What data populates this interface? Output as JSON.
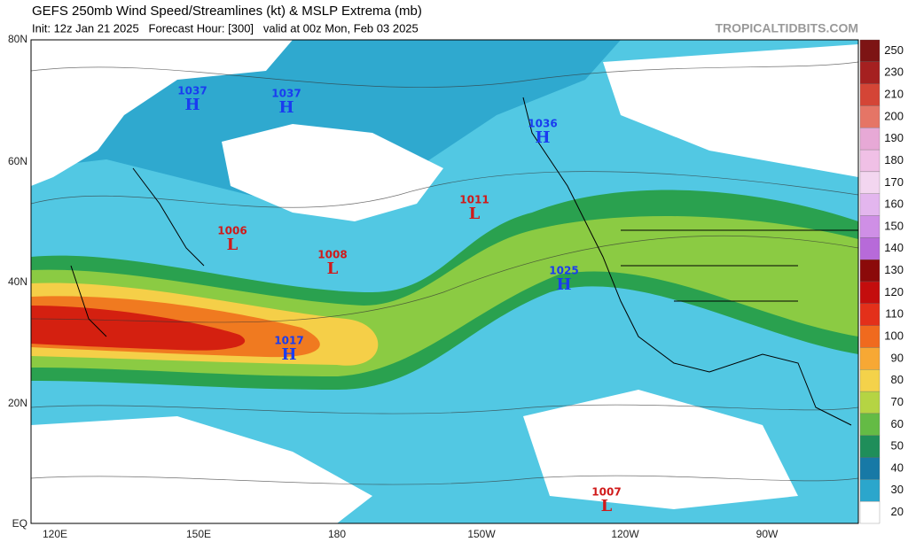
{
  "header": {
    "title": "GEFS 250mb Wind Speed/Streamlines (kt) & MSLP Extrema (mb)",
    "subtitle": "Init: 12z Jan 21 2025   Forecast Hour: [300]   valid at 00z Mon, Feb 03 2025",
    "watermark": "TROPICALTIDBITS.COM"
  },
  "map": {
    "lat_labels": [
      "80N",
      "60N",
      "40N",
      "20N",
      "EQ"
    ],
    "lon_labels": [
      "120E",
      "150E",
      "180",
      "150W",
      "120W",
      "90W"
    ],
    "extrema": [
      {
        "type": "H",
        "pressure": 1037
      },
      {
        "type": "H",
        "pressure": 1037
      },
      {
        "type": "H",
        "pressure": 1036
      },
      {
        "type": "L",
        "pressure": 1011
      },
      {
        "type": "L",
        "pressure": 1006
      },
      {
        "type": "L",
        "pressure": 1008
      },
      {
        "type": "H",
        "pressure": 1025
      },
      {
        "type": "H",
        "pressure": 1017
      },
      {
        "type": "L",
        "pressure": 1007
      }
    ]
  },
  "colorbar": {
    "levels": [
      250,
      230,
      210,
      200,
      190,
      180,
      170,
      160,
      150,
      140,
      130,
      120,
      110,
      100,
      90,
      80,
      70,
      60,
      50,
      40,
      30,
      20
    ],
    "colors": [
      "#7d1414",
      "#a52020",
      "#d44536",
      "#e57566",
      "#e7a9d6",
      "#f0c0e6",
      "#f3d6f0",
      "#e3b6ee",
      "#cf8fe6",
      "#b76ad9",
      "#8b0a0a",
      "#c40d0d",
      "#e3301a",
      "#f06a1e",
      "#f7a834",
      "#f4d24a",
      "#b5d443",
      "#64bb45",
      "#1f8e5a",
      "#1779a6",
      "#2ba6cc",
      "#ffffff"
    ]
  }
}
